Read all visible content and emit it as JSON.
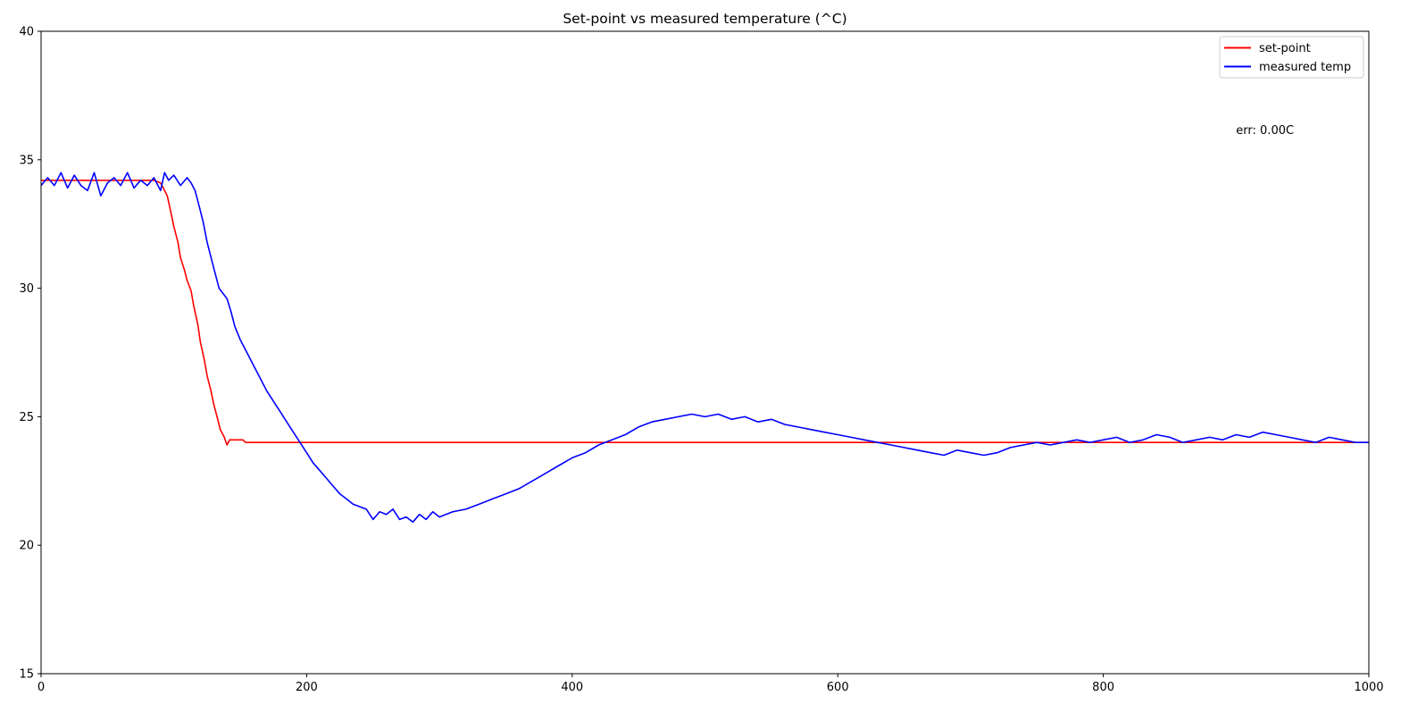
{
  "chart_data": {
    "type": "line",
    "title": "Set-point vs measured temperature (^C)",
    "xlabel": "",
    "ylabel": "",
    "xlim": [
      0,
      1000
    ],
    "ylim": [
      15,
      40
    ],
    "xticks": [
      0,
      200,
      400,
      600,
      800,
      1000
    ],
    "xtick_labels": [
      "0",
      "200",
      "400",
      "600",
      "800",
      "1000"
    ],
    "yticks": [
      15,
      20,
      25,
      30,
      35,
      40
    ],
    "ytick_labels": [
      "15",
      "20",
      "25",
      "30",
      "35",
      "40"
    ],
    "grid": false,
    "legend": {
      "position": "top-right",
      "entries": [
        "set-point",
        "measured temp"
      ]
    },
    "annotation": {
      "text": "err: 0.00C",
      "x": 900,
      "y": 36.0
    },
    "series": [
      {
        "name": "set-point",
        "color": "#ff0000",
        "x": [
          0,
          10,
          20,
          30,
          40,
          50,
          60,
          70,
          80,
          85,
          90,
          92,
          95,
          98,
          100,
          103,
          105,
          108,
          110,
          113,
          115,
          118,
          120,
          123,
          125,
          128,
          130,
          133,
          135,
          138,
          140,
          142,
          145,
          148,
          152,
          154,
          160,
          200,
          300,
          400,
          500,
          600,
          700,
          800,
          900,
          1000
        ],
        "y": [
          34.2,
          34.2,
          34.2,
          34.2,
          34.2,
          34.2,
          34.2,
          34.2,
          34.2,
          34.2,
          34.1,
          33.9,
          33.6,
          32.9,
          32.4,
          31.8,
          31.2,
          30.7,
          30.3,
          29.9,
          29.3,
          28.6,
          27.9,
          27.2,
          26.6,
          26.0,
          25.5,
          24.9,
          24.5,
          24.2,
          23.9,
          24.1,
          24.1,
          24.1,
          24.1,
          24.0,
          24.0,
          24.0,
          24.0,
          24.0,
          24.0,
          24.0,
          24.0,
          24.0,
          24.0,
          24.0
        ]
      },
      {
        "name": "measured temp",
        "color": "#0000ff",
        "x": [
          0,
          5,
          10,
          15,
          20,
          25,
          30,
          35,
          40,
          45,
          50,
          55,
          60,
          65,
          70,
          75,
          80,
          85,
          90,
          93,
          96,
          100,
          105,
          110,
          113,
          116,
          119,
          122,
          125,
          128,
          131,
          134,
          137,
          140,
          143,
          146,
          150,
          155,
          160,
          165,
          170,
          175,
          180,
          185,
          190,
          195,
          200,
          205,
          210,
          215,
          220,
          225,
          230,
          235,
          240,
          245,
          250,
          255,
          260,
          265,
          270,
          275,
          280,
          285,
          290,
          295,
          300,
          310,
          320,
          330,
          340,
          350,
          360,
          370,
          380,
          390,
          400,
          410,
          420,
          430,
          440,
          450,
          460,
          470,
          480,
          490,
          500,
          510,
          520,
          530,
          540,
          550,
          560,
          570,
          580,
          590,
          600,
          610,
          620,
          630,
          640,
          650,
          660,
          670,
          680,
          690,
          700,
          710,
          720,
          730,
          740,
          750,
          760,
          770,
          780,
          790,
          800,
          810,
          820,
          830,
          840,
          850,
          860,
          870,
          880,
          890,
          900,
          910,
          920,
          930,
          940,
          950,
          960,
          970,
          980,
          990,
          1000
        ],
        "y": [
          34.0,
          34.3,
          34.0,
          34.5,
          33.9,
          34.4,
          34.0,
          33.8,
          34.5,
          33.6,
          34.1,
          34.3,
          34.0,
          34.5,
          33.9,
          34.2,
          34.0,
          34.3,
          33.8,
          34.5,
          34.2,
          34.4,
          34.0,
          34.3,
          34.1,
          33.8,
          33.2,
          32.6,
          31.8,
          31.2,
          30.6,
          30.0,
          29.8,
          29.6,
          29.1,
          28.5,
          28.0,
          27.5,
          27.0,
          26.5,
          26.0,
          25.6,
          25.2,
          24.8,
          24.4,
          24.0,
          23.6,
          23.2,
          22.9,
          22.6,
          22.3,
          22.0,
          21.8,
          21.6,
          21.5,
          21.4,
          21.0,
          21.3,
          21.2,
          21.4,
          21.0,
          21.1,
          20.9,
          21.2,
          21.0,
          21.3,
          21.1,
          21.3,
          21.4,
          21.6,
          21.8,
          22.0,
          22.2,
          22.5,
          22.8,
          23.1,
          23.4,
          23.6,
          23.9,
          24.1,
          24.3,
          24.6,
          24.8,
          24.9,
          25.0,
          25.1,
          25.0,
          25.1,
          24.9,
          25.0,
          24.8,
          24.9,
          24.7,
          24.6,
          24.5,
          24.4,
          24.3,
          24.2,
          24.1,
          24.0,
          23.9,
          23.8,
          23.7,
          23.6,
          23.5,
          23.7,
          23.6,
          23.5,
          23.6,
          23.8,
          23.9,
          24.0,
          23.9,
          24.0,
          24.1,
          24.0,
          24.1,
          24.2,
          24.0,
          24.1,
          24.3,
          24.2,
          24.0,
          24.1,
          24.2,
          24.1,
          24.3,
          24.2,
          24.4,
          24.3,
          24.2,
          24.1,
          24.0,
          24.2,
          24.1,
          24.0,
          24.0
        ]
      }
    ]
  }
}
